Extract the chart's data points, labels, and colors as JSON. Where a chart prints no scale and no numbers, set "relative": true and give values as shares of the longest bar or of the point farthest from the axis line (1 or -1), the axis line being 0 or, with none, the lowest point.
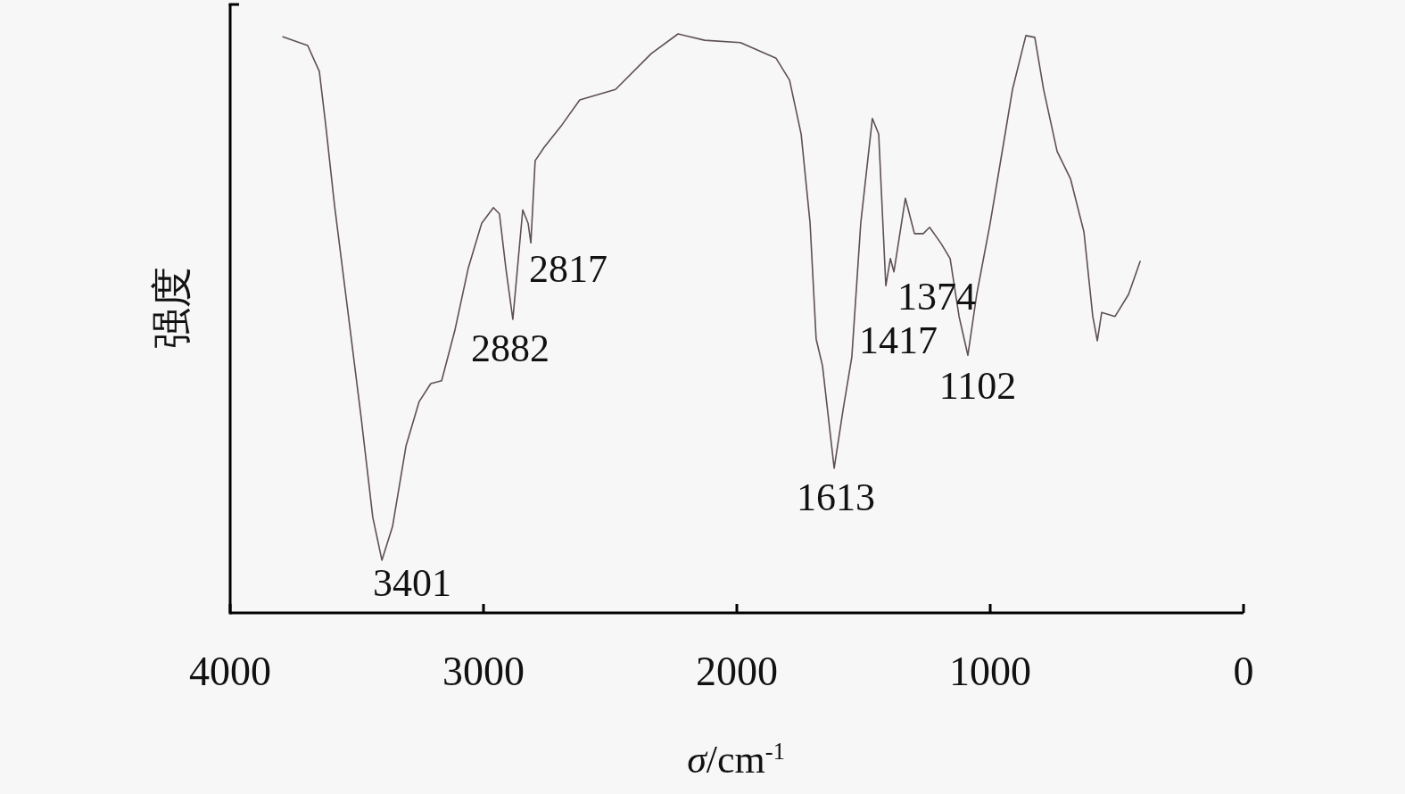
{
  "chart_data": {
    "type": "line",
    "relative": true,
    "xlabel": "*σ*/cm$^{-1}$",
    "ylabel": "强度",
    "xlim": [
      4000,
      0
    ],
    "xticks": [
      4000,
      3000,
      2000,
      1000,
      0
    ],
    "series": [
      {
        "color": "#5e4f56",
        "x": [
          3792,
          3694,
          3648,
          3623,
          3588,
          3535,
          3482,
          3437,
          3401,
          3359,
          3306,
          3254,
          3208,
          3165,
          3113,
          3060,
          3007,
          2961,
          2937,
          2912,
          2884,
          2866,
          2845,
          2824,
          2813,
          2796,
          2761,
          2690,
          2620,
          2479,
          2338,
          2232,
          2127,
          1986,
          1845,
          1792,
          1746,
          1711,
          1687,
          1662,
          1616,
          1581,
          1546,
          1511,
          1465,
          1440,
          1412,
          1394,
          1380,
          1335,
          1299,
          1264,
          1239,
          1194,
          1158,
          1123,
          1088,
          1053,
          1000,
          947,
          912,
          859,
          824,
          789,
          736,
          683,
          630,
          595,
          577,
          560,
          507,
          454,
          408
        ],
        "values": [
          0.995,
          0.98,
          0.935,
          0.843,
          0.704,
          0.519,
          0.334,
          0.165,
          0.091,
          0.149,
          0.288,
          0.365,
          0.396,
          0.401,
          0.488,
          0.596,
          0.673,
          0.7,
          0.689,
          0.596,
          0.507,
          0.596,
          0.696,
          0.673,
          0.639,
          0.781,
          0.804,
          0.843,
          0.886,
          0.904,
          0.966,
          1.0,
          0.989,
          0.985,
          0.958,
          0.92,
          0.827,
          0.673,
          0.473,
          0.427,
          0.25,
          0.35,
          0.442,
          0.673,
          0.854,
          0.827,
          0.565,
          0.612,
          0.589,
          0.716,
          0.655,
          0.655,
          0.666,
          0.638,
          0.612,
          0.512,
          0.445,
          0.55,
          0.673,
          0.812,
          0.904,
          0.997,
          0.994,
          0.904,
          0.797,
          0.75,
          0.658,
          0.512,
          0.47,
          0.519,
          0.512,
          0.55,
          0.607
        ]
      }
    ],
    "annotations": [
      {
        "text": "3401",
        "x": 3401,
        "y": 0.091
      },
      {
        "text": "2882",
        "x": 2884,
        "y": 0.507
      },
      {
        "text": "2817",
        "x": 2813,
        "y": 0.639
      },
      {
        "text": "1613",
        "x": 1616,
        "y": 0.25
      },
      {
        "text": "1417",
        "x": 1412,
        "y": 0.565
      },
      {
        "text": "1374",
        "x": 1380,
        "y": 0.589
      },
      {
        "text": "1102",
        "x": 1088,
        "y": 0.445
      }
    ]
  }
}
